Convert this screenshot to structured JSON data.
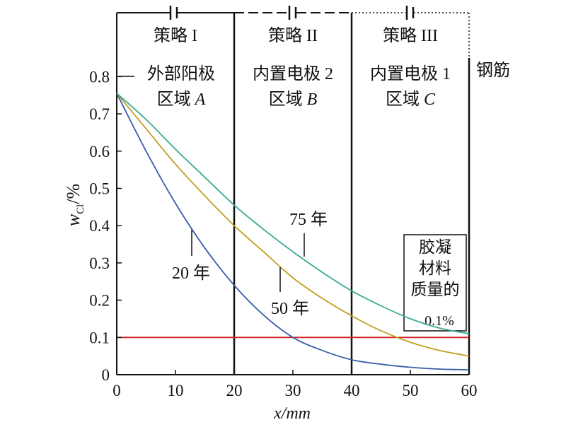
{
  "chart_data": {
    "type": "line",
    "xlabel": "x/mm",
    "ylabel_main": "w",
    "ylabel_sub": "Cl",
    "ylabel_unit": "/%",
    "xlim": [
      0,
      60
    ],
    "ylim": [
      0,
      0.85
    ],
    "xticks": [
      0,
      10,
      20,
      30,
      40,
      50,
      60
    ],
    "yticks": [
      0,
      0.1,
      0.2,
      0.3,
      0.4,
      0.5,
      0.6,
      0.7,
      0.8
    ],
    "series": [
      {
        "name": "20 年",
        "color": "#3a5ea8",
        "x": [
          0,
          5,
          10,
          15,
          20,
          25,
          30,
          35,
          40,
          45,
          50,
          55,
          60
        ],
        "y": [
          0.755,
          0.6,
          0.46,
          0.34,
          0.24,
          0.16,
          0.1,
          0.065,
          0.04,
          0.028,
          0.02,
          0.015,
          0.013
        ]
      },
      {
        "name": "50 年",
        "color": "#c0a020",
        "x": [
          0,
          5,
          10,
          15,
          20,
          25,
          30,
          35,
          40,
          45,
          50,
          55,
          60
        ],
        "y": [
          0.755,
          0.66,
          0.565,
          0.48,
          0.4,
          0.33,
          0.26,
          0.205,
          0.158,
          0.118,
          0.087,
          0.065,
          0.05
        ]
      },
      {
        "name": "75 年",
        "color": "#3aaa96",
        "x": [
          0,
          5,
          10,
          15,
          20,
          25,
          30,
          35,
          40,
          45,
          50,
          55,
          60
        ],
        "y": [
          0.755,
          0.685,
          0.605,
          0.53,
          0.455,
          0.39,
          0.33,
          0.275,
          0.225,
          0.185,
          0.15,
          0.125,
          0.11
        ]
      }
    ],
    "threshold": {
      "y": 0.1,
      "color": "#cc2222"
    },
    "threshold_label": [
      "胶凝",
      "材料",
      "质量的",
      "0.1%"
    ],
    "zones": [
      {
        "strategy": "策略 I",
        "line1": "外部阳极",
        "line2_prefix": "区域 ",
        "line2_italic": "A",
        "x_start": 0,
        "x_end": 20,
        "style": "solid"
      },
      {
        "strategy": "策略 II",
        "line1": "内置电极 2",
        "line2_prefix": "区域 ",
        "line2_italic": "B",
        "x_start": 20,
        "x_end": 40,
        "style": "dashed"
      },
      {
        "strategy": "策略 III",
        "line1": "内置电极 1",
        "line2_prefix": "区域 ",
        "line2_italic": "C",
        "x_start": 40,
        "x_end": 60,
        "style": "dotted"
      }
    ],
    "rebar_label": "钢筋",
    "colors": {
      "axis": "#111111"
    }
  }
}
